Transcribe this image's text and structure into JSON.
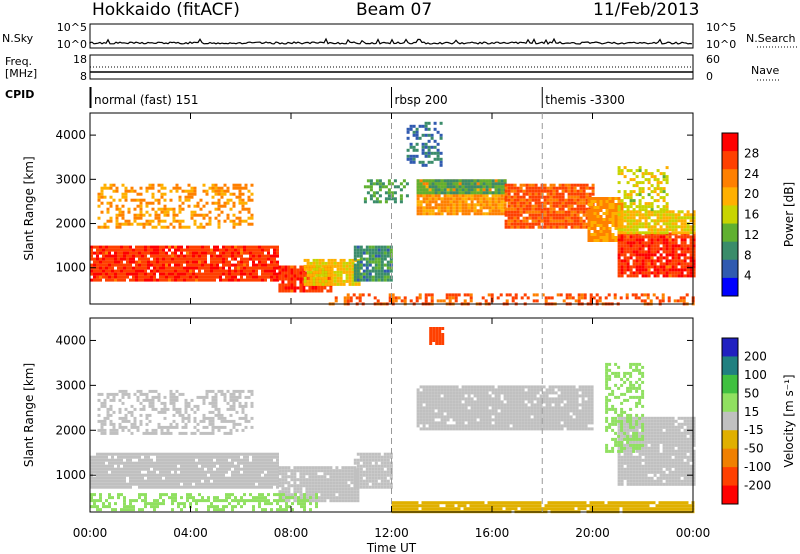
{
  "header": {
    "site": "Hokkaido (fitACF)",
    "beam": "Beam 07",
    "date": "11/Feb/2013"
  },
  "top_strips": {
    "nsky": {
      "label": "N.Sky",
      "ticks": [
        "10^5",
        "10^0"
      ],
      "right_ticks": [
        "10^5",
        "10^0"
      ],
      "right_label": "N.Search"
    },
    "freq": {
      "label_line1": "Freq.",
      "label_line2": "[MHz]",
      "ticks": [
        "18",
        "8"
      ],
      "right_ticks": [
        "60",
        "0"
      ],
      "right_label": "Nave"
    },
    "cpid": {
      "label": "CPID",
      "programs": [
        {
          "name": "normal (fast) 151",
          "start_hour": 0
        },
        {
          "name": "rbsp 200",
          "start_hour": 12
        },
        {
          "name": "themis -3300",
          "start_hour": 18
        }
      ]
    }
  },
  "x_axis": {
    "ticks": [
      "00:00",
      "04:00",
      "08:00",
      "12:00",
      "16:00",
      "20:00",
      "00:00"
    ],
    "label": "Time UT"
  },
  "panels": [
    {
      "id": "power",
      "y_label": "Slant Range [km]",
      "y_ticks": [
        "4000",
        "3000",
        "2000",
        "1000"
      ],
      "colorbar": {
        "label": "Power [dB]",
        "ticks": [
          "28",
          "24",
          "20",
          "16",
          "12",
          "8",
          "4"
        ],
        "colors": [
          "#ff0000",
          "#ff4000",
          "#ff8000",
          "#ffb000",
          "#c8d400",
          "#60b030",
          "#3a8c6a",
          "#305ab0",
          "#0000ff"
        ]
      }
    },
    {
      "id": "velocity",
      "y_label": "Slant Range [km]",
      "y_ticks": [
        "4000",
        "3000",
        "2000",
        "1000"
      ],
      "colorbar": {
        "label": "Velocity [m s⁻¹]",
        "ticks": [
          "200",
          "100",
          "50",
          "15",
          "-15",
          "-50",
          "-100",
          "-200"
        ],
        "colors": [
          "#2020c0",
          "#208080",
          "#40c040",
          "#90e060",
          "#c0c0c0",
          "#e0b000",
          "#f08000",
          "#ff4000",
          "#ff0000"
        ]
      }
    }
  ],
  "chart_data": [
    {
      "type": "heatmap",
      "title": "Power",
      "xlabel": "Time UT",
      "ylabel": "Slant Range [km]",
      "x_range_hours": [
        0,
        24
      ],
      "ylim": [
        180,
        4500
      ],
      "value_label": "Power [dB]",
      "value_range": [
        0,
        31
      ],
      "regions": [
        {
          "t_start": 0.0,
          "t_end": 7.5,
          "r_low": 700,
          "r_high": 1500,
          "value": 28
        },
        {
          "t_start": 0.3,
          "t_end": 6.5,
          "r_low": 1900,
          "r_high": 2900,
          "value": 22,
          "sparse": true
        },
        {
          "t_start": 7.5,
          "t_end": 9.6,
          "r_low": 450,
          "r_high": 1050,
          "value": 28
        },
        {
          "t_start": 8.5,
          "t_end": 10.7,
          "r_low": 650,
          "r_high": 1200,
          "value": 18
        },
        {
          "t_start": 10.5,
          "t_end": 12.0,
          "r_low": 700,
          "r_high": 1500,
          "value": 8
        },
        {
          "t_start": 10.9,
          "t_end": 12.6,
          "r_low": 2500,
          "r_high": 3000,
          "value": 10,
          "sparse": true
        },
        {
          "t_start": 13.0,
          "t_end": 16.5,
          "r_low": 2200,
          "r_high": 3000,
          "value": 22
        },
        {
          "t_start": 13.0,
          "t_end": 16.5,
          "r_low": 2700,
          "r_high": 3000,
          "value": 10
        },
        {
          "t_start": 16.5,
          "t_end": 20.0,
          "r_low": 1900,
          "r_high": 2900,
          "value": 26
        },
        {
          "t_start": 19.8,
          "t_end": 21.2,
          "r_low": 1600,
          "r_high": 2600,
          "value": 22
        },
        {
          "t_start": 21.0,
          "t_end": 24.0,
          "r_low": 800,
          "r_high": 1800,
          "value": 28
        },
        {
          "t_start": 21.0,
          "t_end": 24.0,
          "r_low": 1800,
          "r_high": 2300,
          "value": 18
        },
        {
          "t_start": 21.0,
          "t_end": 23.0,
          "r_low": 2300,
          "r_high": 3300,
          "value": 16,
          "sparse": true
        },
        {
          "t_start": 12.6,
          "t_end": 14.0,
          "r_low": 3300,
          "r_high": 4300,
          "value": 6,
          "sparse": true
        },
        {
          "t_start": 9.5,
          "t_end": 24.0,
          "r_low": 180,
          "r_high": 420,
          "value": 26,
          "sparse": true
        }
      ]
    },
    {
      "type": "heatmap",
      "title": "Velocity",
      "xlabel": "Time UT",
      "ylabel": "Slant Range [km]",
      "x_range_hours": [
        0,
        24
      ],
      "ylim": [
        180,
        4500
      ],
      "value_label": "Velocity [m s⁻¹]",
      "value_range": [
        -200,
        200
      ],
      "regions": [
        {
          "t_start": 0.0,
          "t_end": 7.5,
          "r_low": 700,
          "r_high": 1500,
          "value": 0
        },
        {
          "t_start": 0.3,
          "t_end": 6.5,
          "r_low": 1900,
          "r_high": 2900,
          "value": 0,
          "sparse": true
        },
        {
          "t_start": 7.5,
          "t_end": 10.7,
          "r_low": 450,
          "r_high": 1200,
          "value": 0
        },
        {
          "t_start": 10.5,
          "t_end": 12.0,
          "r_low": 700,
          "r_high": 1500,
          "value": 0
        },
        {
          "t_start": 13.0,
          "t_end": 20.0,
          "r_low": 2000,
          "r_high": 3000,
          "value": 0
        },
        {
          "t_start": 21.0,
          "t_end": 24.0,
          "r_low": 800,
          "r_high": 2300,
          "value": 0
        },
        {
          "t_start": 20.5,
          "t_end": 22.0,
          "r_low": 1500,
          "r_high": 3500,
          "value": 50,
          "sparse": true
        },
        {
          "t_start": 0.0,
          "t_end": 9.0,
          "r_low": 250,
          "r_high": 600,
          "value": 50,
          "sparse": true
        },
        {
          "t_start": 12.0,
          "t_end": 24.0,
          "r_low": 180,
          "r_high": 420,
          "value": -50
        },
        {
          "t_start": 13.5,
          "t_end": 14.0,
          "r_low": 3900,
          "r_high": 4300,
          "value": -150
        }
      ]
    }
  ]
}
